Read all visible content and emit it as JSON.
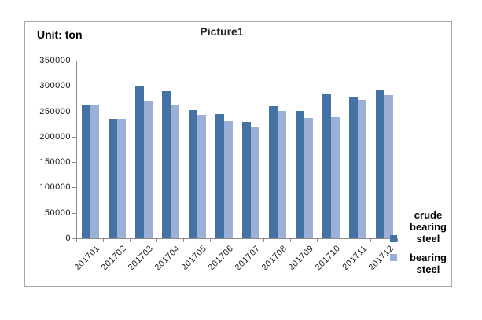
{
  "chart_data": {
    "type": "bar",
    "title": "Picture1",
    "unit_label": "Unit: ton",
    "categories": [
      "201701",
      "201702",
      "201703",
      "201704",
      "201705",
      "201706",
      "201707",
      "201708",
      "201709",
      "201710",
      "201711",
      "201712"
    ],
    "series": [
      {
        "name": "crude bearing steel",
        "color": "#4472a4",
        "values": [
          261000,
          236000,
          299000,
          290000,
          252000,
          244000,
          230000,
          260000,
          251000,
          285000,
          277000,
          292000
        ]
      },
      {
        "name": "bearing steel",
        "color": "#9cafd6",
        "values": [
          263000,
          236000,
          271000,
          263000,
          243000,
          231000,
          220000,
          251000,
          237000,
          239000,
          273000,
          282000
        ]
      }
    ],
    "ylim": [
      0,
      350000
    ],
    "ytick_step": 50000,
    "yticks": [
      350000,
      300000,
      250000,
      200000,
      150000,
      100000,
      50000,
      0
    ],
    "xlabel": "",
    "ylabel": "",
    "grid": false,
    "legend_position": "right",
    "x_label_rotation": -45
  },
  "colors": {
    "axis": "#8c8c8c",
    "frame_border": "#a6a6a6",
    "text": "#000000"
  }
}
